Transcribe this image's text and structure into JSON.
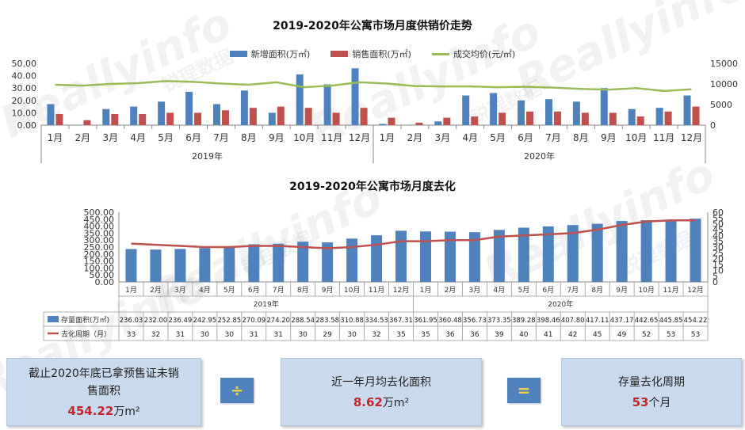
{
  "chart_data": [
    {
      "type": "bar",
      "title": "2019-2020年公寓市场月度供销价走势",
      "categories": [
        "1月",
        "2月",
        "3月",
        "4月",
        "5月",
        "6月",
        "7月",
        "8月",
        "9月",
        "10月",
        "11月",
        "12月",
        "1月",
        "2月",
        "3月",
        "4月",
        "5月",
        "6月",
        "7月",
        "8月",
        "9月",
        "10月",
        "11月",
        "12月"
      ],
      "year_groups": [
        "2019年",
        "2020年"
      ],
      "series": [
        {
          "name": "新增面积(万㎡)",
          "type": "bar",
          "axis": "left",
          "color": "#4f81bd",
          "values": [
            17,
            0,
            13,
            15,
            19,
            27,
            17,
            28,
            10,
            41,
            33,
            46,
            1,
            0,
            3,
            24,
            26,
            20,
            21,
            19,
            30,
            13,
            14,
            24
          ]
        },
        {
          "name": "销售面积(万㎡)",
          "type": "bar",
          "axis": "left",
          "color": "#c0504d",
          "values": [
            9,
            4,
            9,
            9,
            10,
            10,
            12,
            14,
            15,
            14,
            10,
            14,
            6,
            2,
            6,
            7,
            10,
            11,
            11,
            10,
            10,
            7,
            11,
            15
          ]
        },
        {
          "name": "成交均价(元/㎡)",
          "type": "line",
          "axis": "right",
          "color": "#9bbb59",
          "values": [
            9800,
            9600,
            10000,
            10200,
            10700,
            10500,
            10100,
            9800,
            10400,
            9200,
            9600,
            10400,
            10100,
            9500,
            9400,
            9400,
            9200,
            9300,
            9100,
            8800,
            8600,
            9000,
            8300,
            8700
          ]
        }
      ],
      "y_left": {
        "min": 0,
        "max": 50,
        "ticks": [
          "0.00",
          "10.00",
          "20.00",
          "30.00",
          "40.00",
          "50.00"
        ]
      },
      "y_right": {
        "min": 0,
        "max": 15000,
        "ticks": [
          "0",
          "5000",
          "10000",
          "15000"
        ]
      },
      "legend": "top-center"
    },
    {
      "type": "bar",
      "title": "2019-2020年公寓市场月度去化",
      "categories": [
        "1月",
        "2月",
        "3月",
        "4月",
        "5月",
        "6月",
        "7月",
        "8月",
        "9月",
        "10月",
        "11月",
        "12月",
        "1月",
        "2月",
        "3月",
        "4月",
        "5月",
        "6月",
        "7月",
        "8月",
        "9月",
        "10月",
        "11月",
        "12月"
      ],
      "year_groups": [
        "2019年",
        "2020年"
      ],
      "series": [
        {
          "name": "存量面积(万㎡)",
          "type": "bar",
          "axis": "left",
          "color": "#4f81bd",
          "values": [
            "236.03",
            "232.00",
            "236.49",
            "242.95",
            "252.85",
            "270.09",
            "274.20",
            "288.54",
            "283.58",
            "310.88",
            "334.53",
            "367.31",
            "361.95",
            "360.48",
            "356.73",
            "373.35",
            "389.28",
            "398.46",
            "407.80",
            "417.11",
            "437.17",
            "442.65",
            "445.85",
            "454.22"
          ]
        },
        {
          "name": "去化周期（月）",
          "type": "line",
          "axis": "right",
          "color": "#c0504d",
          "values": [
            "33",
            "32",
            "31",
            "30",
            "30",
            "31",
            "31",
            "30",
            "29",
            "30",
            "32",
            "35",
            "35",
            "36",
            "36",
            "39",
            "40",
            "41",
            "42",
            "45",
            "49",
            "52",
            "53",
            "53"
          ]
        }
      ],
      "y_left": {
        "min": 0,
        "max": 500,
        "ticks": [
          "0.00",
          "50.00",
          "100.00",
          "150.00",
          "200.00",
          "250.00",
          "300.00",
          "350.00",
          "400.00",
          "450.00",
          "500.00"
        ]
      },
      "y_right": {
        "min": 0,
        "max": 60,
        "ticks": [
          "0",
          "5",
          "10",
          "15",
          "20",
          "25",
          "30",
          "35",
          "40",
          "45",
          "50",
          "55",
          "60"
        ]
      },
      "legend": "table-bottom"
    }
  ],
  "watermark": {
    "en": "Reallyinfo",
    "cn": "锐理数据"
  },
  "summary": {
    "box1": {
      "label": "截止2020年底已拿预售证未销售面积",
      "value": "454.22",
      "unit": "万m²"
    },
    "op1": "÷",
    "box2": {
      "label": "近一年月均去化面积",
      "value": "8.62",
      "unit": "万m²"
    },
    "op2": "=",
    "box3": {
      "label": "存量去化周期",
      "value": "53",
      "unit": "个月"
    }
  }
}
